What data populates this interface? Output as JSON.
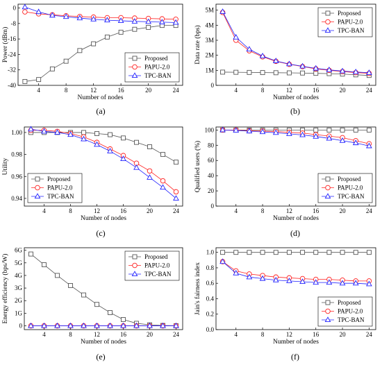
{
  "chart_data": [
    {
      "type": "line",
      "caption": "(a)",
      "xlabel": "Number of nodes",
      "ylabel": "Power (dBm)",
      "xlim": [
        1,
        25
      ],
      "ylim": [
        -40,
        2
      ],
      "xticks": [
        4,
        8,
        12,
        16,
        20,
        24
      ],
      "yticks": [
        -40,
        -32,
        -24,
        -16,
        -8,
        0
      ],
      "ytick_labels": [
        "-40",
        "-32",
        "-24",
        "-16",
        "-8",
        "0"
      ],
      "legend_position": "bottom-right",
      "x": [
        2,
        4,
        6,
        8,
        10,
        12,
        14,
        16,
        18,
        20,
        22,
        24
      ],
      "series": [
        {
          "name": "Proposed",
          "marker": "square",
          "color": "#555555",
          "values": [
            -38,
            -37,
            -31.5,
            -27.5,
            -22,
            -18.5,
            -15,
            -12.5,
            -11,
            -10,
            -9,
            -9
          ]
        },
        {
          "name": "PAPU-2.0",
          "marker": "circle",
          "color": "#ff2020",
          "values": [
            -2,
            -3,
            -3.5,
            -4,
            -4.4,
            -4.7,
            -5,
            -5,
            -5.2,
            -5.4,
            -5.6,
            -5.8
          ]
        },
        {
          "name": "TPC-BAN",
          "marker": "triangle",
          "color": "#2020ff",
          "values": [
            0.5,
            -2,
            -3.8,
            -4.5,
            -5.2,
            -5.8,
            -6.3,
            -6.6,
            -6.9,
            -7.1,
            -7.3,
            -7.5
          ]
        }
      ]
    },
    {
      "type": "line",
      "caption": "(b)",
      "xlabel": "Number of nodes",
      "ylabel": "Data rate (bps)",
      "xlim": [
        1,
        25
      ],
      "ylim": [
        0,
        5.4
      ],
      "xticks": [
        4,
        8,
        12,
        16,
        20,
        24
      ],
      "yticks": [
        0,
        1,
        2,
        3,
        4,
        5
      ],
      "ytick_labels": [
        "0",
        "1M",
        "2M",
        "3M",
        "4M",
        "5M"
      ],
      "legend_position": "top-right",
      "x": [
        2,
        4,
        6,
        8,
        10,
        12,
        14,
        16,
        18,
        20,
        22,
        24
      ],
      "series": [
        {
          "name": "Proposed",
          "marker": "square",
          "color": "#555555",
          "values": [
            0.88,
            0.87,
            0.86,
            0.85,
            0.84,
            0.83,
            0.82,
            0.8,
            0.78,
            0.75,
            0.7,
            0.66
          ]
        },
        {
          "name": "PAPU-2.0",
          "marker": "circle",
          "color": "#ff2020",
          "values": [
            4.85,
            3.0,
            2.3,
            1.9,
            1.6,
            1.4,
            1.25,
            1.1,
            1.0,
            0.92,
            0.85,
            0.8
          ]
        },
        {
          "name": "TPC-BAN",
          "marker": "triangle",
          "color": "#2020ff",
          "values": [
            4.9,
            3.2,
            2.4,
            1.95,
            1.62,
            1.42,
            1.27,
            1.13,
            1.03,
            0.95,
            0.89,
            0.84
          ]
        }
      ]
    },
    {
      "type": "line",
      "caption": "(c)",
      "xlabel": "Number of nodes",
      "ylabel": "Utility",
      "xlim": [
        1,
        25
      ],
      "ylim": [
        0.933,
        1.005
      ],
      "xticks": [
        4,
        8,
        12,
        16,
        20,
        24
      ],
      "yticks": [
        0.94,
        0.96,
        0.98,
        1.0
      ],
      "ytick_labels": [
        "0.94",
        "0.96",
        "0.98",
        "1.00"
      ],
      "legend_position": "bottom-left",
      "x": [
        2,
        4,
        6,
        8,
        10,
        12,
        14,
        16,
        18,
        20,
        22,
        24
      ],
      "series": [
        {
          "name": "Proposed",
          "marker": "square",
          "color": "#555555",
          "values": [
            1.0,
            1.0,
            1.0,
            1.0,
            1.0,
            0.999,
            0.998,
            0.995,
            0.991,
            0.987,
            0.98,
            0.973
          ]
        },
        {
          "name": "PAPU-2.0",
          "marker": "circle",
          "color": "#ff2020",
          "values": [
            1.002,
            1.002,
            1.001,
            0.999,
            0.996,
            0.991,
            0.985,
            0.979,
            0.972,
            0.965,
            0.956,
            0.946
          ]
        },
        {
          "name": "TPC-BAN",
          "marker": "triangle",
          "color": "#2020ff",
          "values": [
            1.003,
            1.001,
            1.0,
            0.998,
            0.994,
            0.989,
            0.983,
            0.976,
            0.968,
            0.959,
            0.95,
            0.94
          ]
        }
      ]
    },
    {
      "type": "line",
      "caption": "(d)",
      "xlabel": "Number of nodes",
      "ylabel": "Qualified users (%)",
      "xlim": [
        1,
        25
      ],
      "ylim": [
        0,
        104
      ],
      "xticks": [
        4,
        8,
        12,
        16,
        20,
        24
      ],
      "yticks": [
        0,
        20,
        40,
        60,
        80,
        100
      ],
      "ytick_labels": [
        "0",
        "20",
        "40",
        "60",
        "80",
        "100"
      ],
      "legend_position": "bottom-right",
      "x": [
        2,
        4,
        6,
        8,
        10,
        12,
        14,
        16,
        18,
        20,
        22,
        24
      ],
      "series": [
        {
          "name": "Proposed",
          "marker": "square",
          "color": "#555555",
          "values": [
            100,
            100,
            100,
            100,
            100,
            100,
            100,
            100,
            100,
            100,
            100,
            100
          ]
        },
        {
          "name": "PAPU-2.0",
          "marker": "circle",
          "color": "#ff2020",
          "values": [
            100,
            100,
            99,
            98.5,
            98,
            97,
            96,
            94,
            92,
            90,
            86,
            82
          ]
        },
        {
          "name": "TPC-BAN",
          "marker": "triangle",
          "color": "#2020ff",
          "values": [
            100,
            99.5,
            98.5,
            97.5,
            96.5,
            95,
            93.5,
            91.5,
            89,
            86,
            83,
            79
          ]
        }
      ]
    },
    {
      "type": "line",
      "caption": "(e)",
      "xlabel": "Number of nodes",
      "ylabel": "Energy efficiency (bps/W)",
      "xlim": [
        1,
        25
      ],
      "ylim": [
        -0.3,
        6.2
      ],
      "xticks": [
        4,
        8,
        12,
        16,
        20,
        24
      ],
      "yticks": [
        0,
        1,
        2,
        3,
        4,
        5,
        6
      ],
      "ytick_labels": [
        "0",
        "1G",
        "2G",
        "3G",
        "4G",
        "5G",
        "6G"
      ],
      "legend_position": "top-right",
      "x": [
        2,
        4,
        6,
        8,
        10,
        12,
        14,
        16,
        18,
        20,
        22,
        24
      ],
      "series": [
        {
          "name": "Proposed",
          "marker": "square",
          "color": "#555555",
          "values": [
            5.7,
            4.85,
            4.0,
            3.2,
            2.45,
            1.7,
            1.05,
            0.5,
            0.2,
            0.08,
            0.03,
            0.01
          ]
        },
        {
          "name": "PAPU-2.0",
          "marker": "circle",
          "color": "#ff2020",
          "values": [
            0,
            0,
            0,
            0,
            0,
            0,
            0,
            0,
            0,
            0,
            0,
            0
          ]
        },
        {
          "name": "TPC-BAN",
          "marker": "triangle",
          "color": "#2020ff",
          "values": [
            0,
            0,
            0,
            0,
            0,
            0,
            0,
            0,
            0,
            0,
            0,
            0
          ]
        }
      ]
    },
    {
      "type": "line",
      "caption": "(f)",
      "xlabel": "Number of nodes",
      "ylabel": "Jain's fairness index",
      "xlim": [
        1,
        25
      ],
      "ylim": [
        0,
        1.06
      ],
      "xticks": [
        4,
        8,
        12,
        16,
        20,
        24
      ],
      "yticks": [
        0,
        0.2,
        0.4,
        0.6,
        0.8,
        1.0
      ],
      "ytick_labels": [
        "0.0",
        "0.2",
        "0.4",
        "0.6",
        "0.8",
        "1.0"
      ],
      "legend_position": "bottom-right",
      "x": [
        2,
        4,
        6,
        8,
        10,
        12,
        14,
        16,
        18,
        20,
        22,
        24
      ],
      "series": [
        {
          "name": "Proposed",
          "marker": "square",
          "color": "#555555",
          "values": [
            1.0,
            1.0,
            1.0,
            1.0,
            1.0,
            1.0,
            1.0,
            1.0,
            1.0,
            1.0,
            1.0,
            1.0
          ]
        },
        {
          "name": "PAPU-2.0",
          "marker": "circle",
          "color": "#ff2020",
          "values": [
            0.88,
            0.76,
            0.72,
            0.7,
            0.68,
            0.67,
            0.66,
            0.65,
            0.65,
            0.64,
            0.63,
            0.63
          ]
        },
        {
          "name": "TPC-BAN",
          "marker": "triangle",
          "color": "#2020ff",
          "values": [
            0.88,
            0.73,
            0.68,
            0.66,
            0.64,
            0.63,
            0.62,
            0.61,
            0.61,
            0.6,
            0.6,
            0.59
          ]
        }
      ]
    }
  ]
}
